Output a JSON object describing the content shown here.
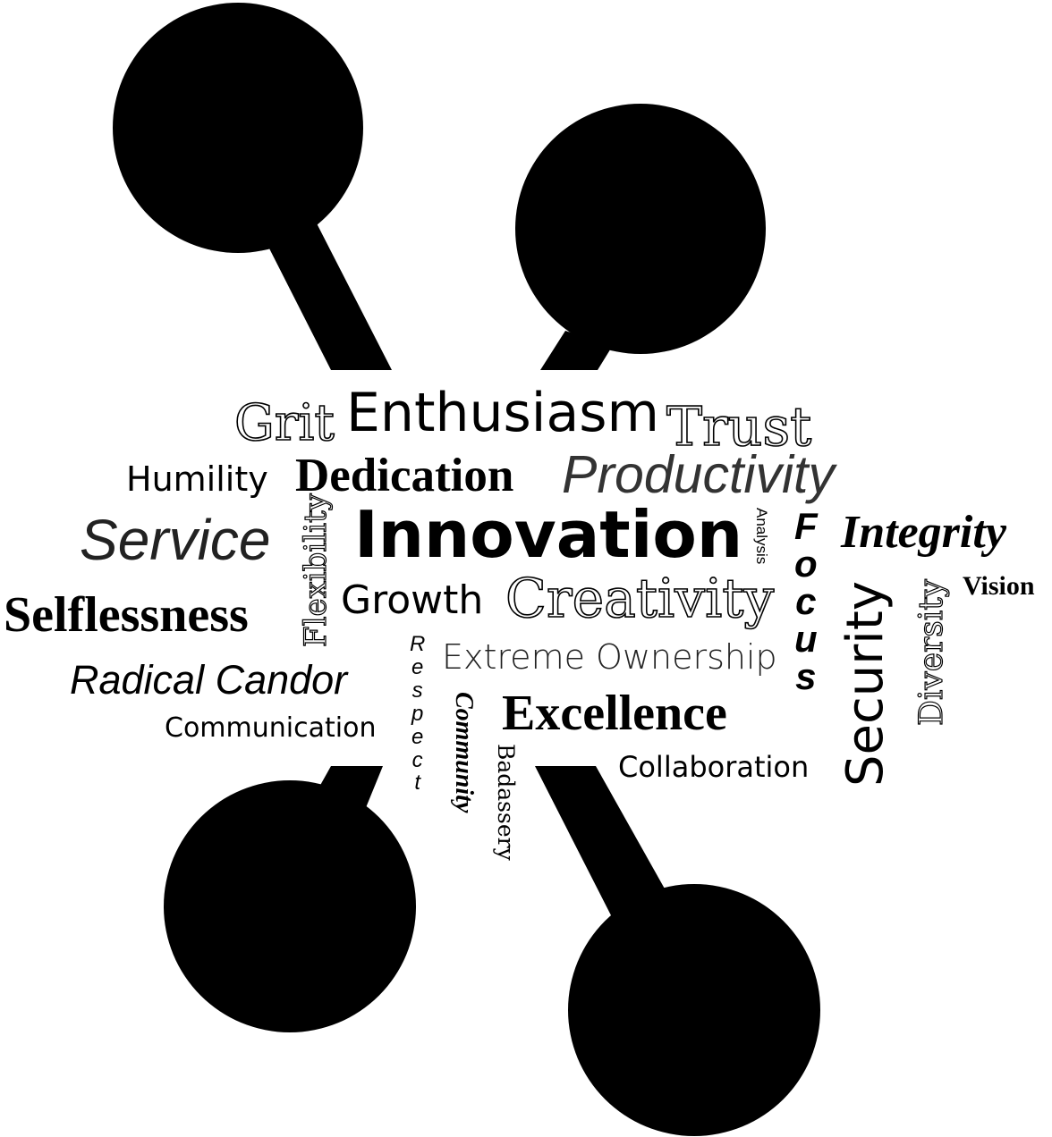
{
  "words": {
    "grit": "Grit",
    "enthusiasm": "Enthusiasm",
    "trust": "Trust",
    "humility": "Humility",
    "dedication": "Dedication",
    "productivity": "Productivity",
    "service": "Service",
    "flexibility": "Flexibility",
    "innovation": "Innovation",
    "analysis": "Analysis",
    "focus": [
      "F",
      "o",
      "c",
      "u",
      "s"
    ],
    "integrity": "Integrity",
    "vision": "Vision",
    "selflessness": "Selflessness",
    "growth": "Growth",
    "creativity": "Creativity",
    "security": "Security",
    "diversity": "Diversity",
    "radical_candor": "Radical Candor",
    "respect": [
      "R",
      "e",
      "s",
      "p",
      "e",
      "c",
      "t"
    ],
    "extreme_ownership": "Extreme Ownership",
    "communication": "Communication",
    "community": "Community",
    "excellence": "Excellence",
    "badassery": "Badassery",
    "collaboration": "Collaboration"
  },
  "colors": {
    "ink": "#000000",
    "background": "#ffffff"
  }
}
